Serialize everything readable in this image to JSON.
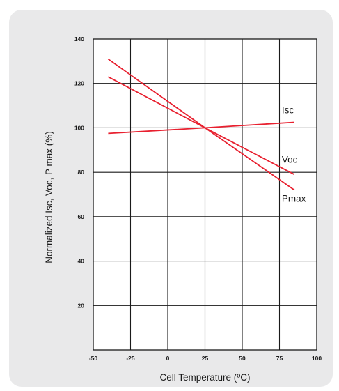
{
  "colors": {
    "panel_background": "#e9e9ea",
    "plot_background": "#ffffff",
    "grid": "#1a1a1a",
    "series_line": "#e8202f",
    "text": "#1a1a1a"
  },
  "chart_data": {
    "type": "line",
    "title": "",
    "xlabel": "Cell Temperature (ºC)",
    "ylabel": "Normalized Isc, Voc, P max (%)",
    "xlim": [
      -50,
      100
    ],
    "ylim": [
      0,
      140
    ],
    "x_ticks": [
      -50,
      -25,
      0,
      25,
      50,
      75,
      100
    ],
    "y_ticks": [
      20,
      40,
      60,
      80,
      100,
      120,
      140
    ],
    "x_tick_labels": [
      "-50",
      "-25",
      "0",
      "25",
      "50",
      "75",
      "100"
    ],
    "y_tick_labels": [
      "20",
      "40",
      "60",
      "80",
      "100",
      "120",
      "140"
    ],
    "grid": true,
    "legend": "inline labels at right end of lines",
    "series": [
      {
        "name": "Isc",
        "x": [
          -40,
          25,
          85
        ],
        "values": [
          97.5,
          100,
          102.5
        ]
      },
      {
        "name": "Voc",
        "x": [
          -40,
          25,
          85
        ],
        "values": [
          123,
          100,
          79
        ]
      },
      {
        "name": "Pmax",
        "x": [
          -40,
          25,
          85
        ],
        "values": [
          131,
          100,
          72
        ]
      }
    ]
  }
}
